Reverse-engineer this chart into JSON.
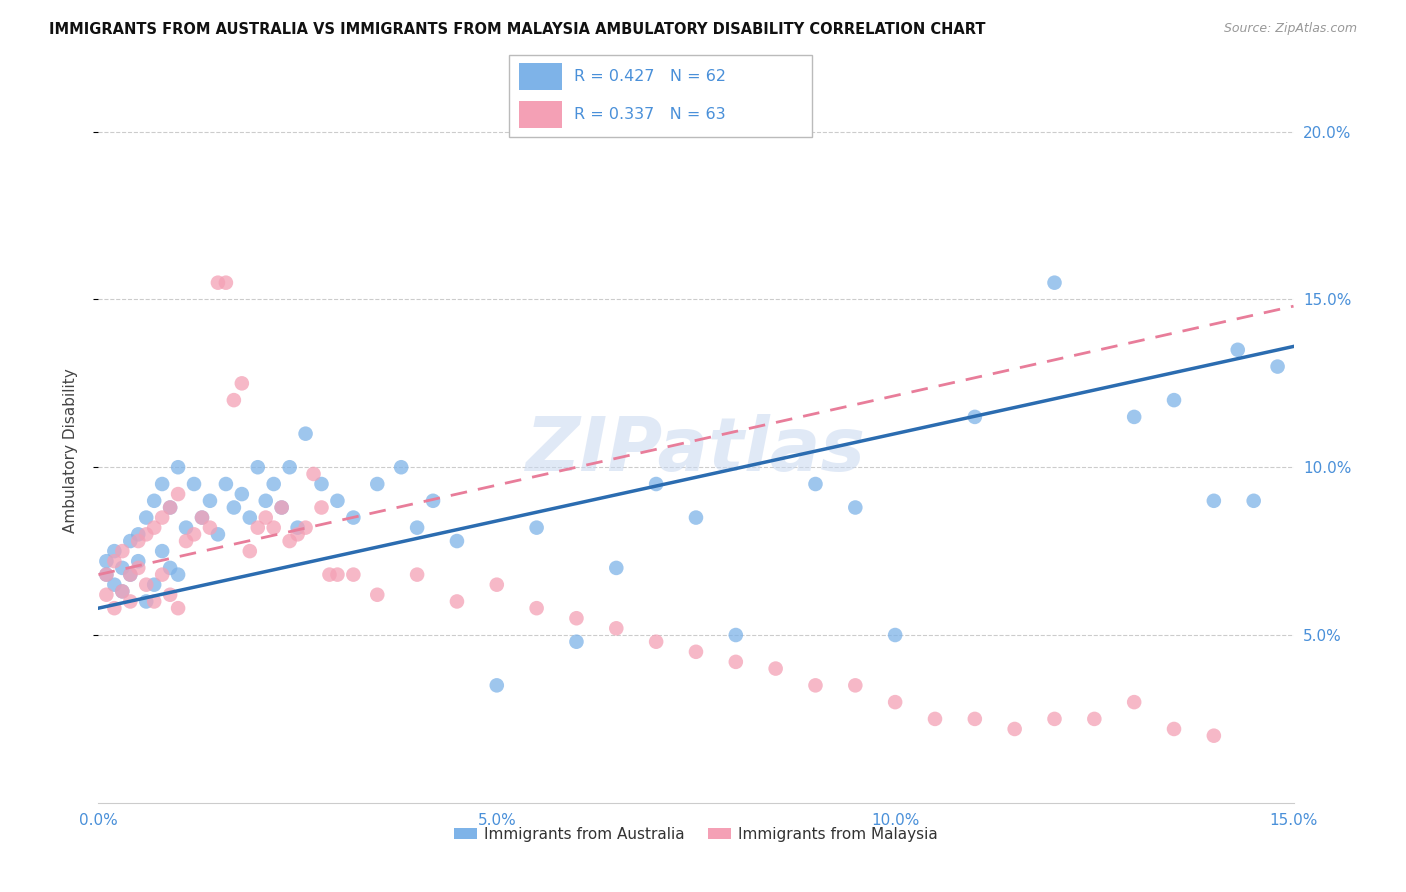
{
  "title": "IMMIGRANTS FROM AUSTRALIA VS IMMIGRANTS FROM MALAYSIA AMBULATORY DISABILITY CORRELATION CHART",
  "source": "Source: ZipAtlas.com",
  "ylabel": "Ambulatory Disability",
  "xlabel_australia": "Immigrants from Australia",
  "xlabel_malaysia": "Immigrants from Malaysia",
  "R_australia": 0.427,
  "N_australia": 62,
  "R_malaysia": 0.337,
  "N_malaysia": 63,
  "xlim": [
    0,
    0.15
  ],
  "ylim": [
    0,
    0.21
  ],
  "yticks": [
    0.05,
    0.1,
    0.15,
    0.2
  ],
  "xticks": [
    0.0,
    0.05,
    0.1,
    0.15
  ],
  "color_australia": "#7EB3E8",
  "color_malaysia": "#F4A0B5",
  "color_line_australia": "#2B6CB0",
  "color_line_malaysia": "#E87D9A",
  "color_axis_labels": "#4A90D9",
  "color_grid": "#CCCCCC",
  "watermark_color": "#C8D8F0",
  "australia_x": [
    0.001,
    0.001,
    0.002,
    0.002,
    0.003,
    0.003,
    0.004,
    0.004,
    0.005,
    0.005,
    0.006,
    0.006,
    0.007,
    0.007,
    0.008,
    0.008,
    0.009,
    0.009,
    0.01,
    0.01,
    0.011,
    0.012,
    0.013,
    0.014,
    0.015,
    0.016,
    0.017,
    0.018,
    0.019,
    0.02,
    0.021,
    0.022,
    0.023,
    0.024,
    0.025,
    0.026,
    0.028,
    0.03,
    0.032,
    0.035,
    0.038,
    0.04,
    0.042,
    0.045,
    0.05,
    0.055,
    0.06,
    0.065,
    0.07,
    0.075,
    0.08,
    0.09,
    0.095,
    0.1,
    0.11,
    0.12,
    0.13,
    0.135,
    0.14,
    0.143,
    0.145,
    0.148
  ],
  "australia_y": [
    0.072,
    0.068,
    0.065,
    0.075,
    0.07,
    0.063,
    0.068,
    0.078,
    0.072,
    0.08,
    0.06,
    0.085,
    0.065,
    0.09,
    0.075,
    0.095,
    0.07,
    0.088,
    0.068,
    0.1,
    0.082,
    0.095,
    0.085,
    0.09,
    0.08,
    0.095,
    0.088,
    0.092,
    0.085,
    0.1,
    0.09,
    0.095,
    0.088,
    0.1,
    0.082,
    0.11,
    0.095,
    0.09,
    0.085,
    0.095,
    0.1,
    0.082,
    0.09,
    0.078,
    0.035,
    0.082,
    0.048,
    0.07,
    0.095,
    0.085,
    0.05,
    0.095,
    0.088,
    0.05,
    0.115,
    0.155,
    0.115,
    0.12,
    0.09,
    0.135,
    0.09,
    0.13
  ],
  "malaysia_x": [
    0.001,
    0.001,
    0.002,
    0.002,
    0.003,
    0.003,
    0.004,
    0.004,
    0.005,
    0.005,
    0.006,
    0.006,
    0.007,
    0.007,
    0.008,
    0.008,
    0.009,
    0.009,
    0.01,
    0.01,
    0.011,
    0.012,
    0.013,
    0.014,
    0.015,
    0.016,
    0.017,
    0.018,
    0.019,
    0.02,
    0.021,
    0.022,
    0.023,
    0.024,
    0.025,
    0.026,
    0.027,
    0.028,
    0.029,
    0.03,
    0.032,
    0.035,
    0.04,
    0.045,
    0.05,
    0.055,
    0.06,
    0.065,
    0.07,
    0.075,
    0.08,
    0.085,
    0.09,
    0.095,
    0.1,
    0.105,
    0.11,
    0.115,
    0.12,
    0.125,
    0.13,
    0.135,
    0.14
  ],
  "malaysia_y": [
    0.062,
    0.068,
    0.058,
    0.072,
    0.063,
    0.075,
    0.06,
    0.068,
    0.07,
    0.078,
    0.065,
    0.08,
    0.06,
    0.082,
    0.068,
    0.085,
    0.062,
    0.088,
    0.058,
    0.092,
    0.078,
    0.08,
    0.085,
    0.082,
    0.155,
    0.155,
    0.12,
    0.125,
    0.075,
    0.082,
    0.085,
    0.082,
    0.088,
    0.078,
    0.08,
    0.082,
    0.098,
    0.088,
    0.068,
    0.068,
    0.068,
    0.062,
    0.068,
    0.06,
    0.065,
    0.058,
    0.055,
    0.052,
    0.048,
    0.045,
    0.042,
    0.04,
    0.035,
    0.035,
    0.03,
    0.025,
    0.025,
    0.022,
    0.025,
    0.025,
    0.03,
    0.022,
    0.02
  ],
  "line_aus_start_y": 0.058,
  "line_aus_end_y": 0.136,
  "line_mal_start_y": 0.068,
  "line_mal_end_y": 0.148
}
